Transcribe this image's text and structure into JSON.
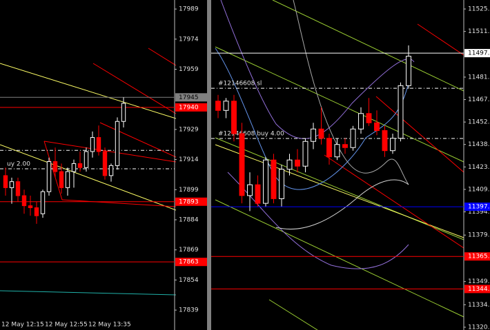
{
  "chart_data": [
    {
      "type": "candlestick",
      "ylim": [
        17835.6,
        17993.5
      ],
      "yticks": [
        17989,
        17974,
        17959,
        17929,
        17914,
        17899,
        17884,
        17869,
        17854,
        17839
      ],
      "categories": [
        "12 May 12:15",
        null,
        null,
        null,
        null,
        null,
        null,
        "12 May 12:55",
        null,
        null,
        null,
        null,
        null,
        null,
        "12 May 13:35",
        null,
        null,
        null,
        null,
        null
      ],
      "candles": [
        [
          17906,
          17910,
          17896,
          17900
        ],
        [
          17900,
          17905,
          17892,
          17903
        ],
        [
          17903,
          17905,
          17893,
          17896
        ],
        [
          17896,
          17899,
          17887,
          17891
        ],
        [
          17891,
          17896,
          17886,
          17890
        ],
        [
          17890,
          17893,
          17882,
          17886
        ],
        [
          17887,
          17899,
          17885,
          17898
        ],
        [
          17898,
          17915,
          17896,
          17913
        ],
        [
          17913,
          17920,
          17905,
          17908
        ],
        [
          17908,
          17912,
          17897,
          17900
        ],
        [
          17900,
          17910,
          17896,
          17908
        ],
        [
          17908,
          17914,
          17900,
          17912
        ],
        [
          17912,
          17918,
          17908,
          17910
        ],
        [
          17910,
          17920,
          17908,
          17918
        ],
        [
          17918,
          17928,
          17915,
          17925
        ],
        [
          17925,
          17931,
          17916,
          17918
        ],
        [
          17918,
          17920,
          17904,
          17906
        ],
        [
          17906,
          17912,
          17903,
          17911
        ],
        [
          17911,
          17935,
          17909,
          17933
        ],
        [
          17933,
          17945,
          17930,
          17942
        ]
      ],
      "up_color": "#ffffff",
      "down_color": "#ff0000",
      "tags": [
        {
          "value": 17945,
          "label": "17945",
          "color": "#808080"
        },
        {
          "value": 17940,
          "label": "17940",
          "color": "#ff0000"
        },
        {
          "value": 17893,
          "label": "17893",
          "color": "#ff0000"
        },
        {
          "value": 17863,
          "label": "17863",
          "color": "#ff0000"
        }
      ],
      "orders": [
        {
          "value": 17918.6
        },
        {
          "value": 17909.4,
          "label": "uy 2.00"
        }
      ]
    },
    {
      "type": "candlestick",
      "ylim": [
        11318.2,
        11531.3
      ],
      "yticks": [
        11525.5,
        {
          "value": 11511,
          "label": "11511.0"
        },
        11481.5,
        {
          "value": 11467,
          "label": "11467.0"
        },
        11452.5,
        {
          "value": 11438,
          "label": "11438.0"
        },
        11423.5,
        {
          "value": 11409,
          "label": "11409.0"
        },
        11394.5,
        11379.5,
        11349.5,
        11334.5,
        {
          "value": 11320,
          "label": "11320.0"
        }
      ],
      "candles": [
        [
          11466,
          11470,
          11455,
          11460
        ],
        [
          11460,
          11468,
          11455,
          11466
        ],
        [
          11466,
          11470,
          11440,
          11445
        ],
        [
          11445,
          11452,
          11400,
          11405
        ],
        [
          11405,
          11420,
          11395,
          11412
        ],
        [
          11412,
          11418,
          11398,
          11400
        ],
        [
          11400,
          11430,
          11398,
          11428
        ],
        [
          11428,
          11432,
          11400,
          11403
        ],
        [
          11403,
          11425,
          11398,
          11422
        ],
        [
          11422,
          11432,
          11418,
          11428
        ],
        [
          11428,
          11435,
          11420,
          11424
        ],
        [
          11424,
          11442,
          11420,
          11440
        ],
        [
          11440,
          11452,
          11435,
          11448
        ],
        [
          11448,
          11462,
          11438,
          11442
        ],
        [
          11442,
          11445,
          11425,
          11430
        ],
        [
          11430,
          11442,
          11428,
          11438
        ],
        [
          11438,
          11442,
          11432,
          11436
        ],
        [
          11436,
          11450,
          11434,
          11448
        ],
        [
          11448,
          11462,
          11445,
          11458
        ],
        [
          11458,
          11468,
          11450,
          11452
        ],
        [
          11452,
          11460,
          11444,
          11447
        ],
        [
          11447,
          11450,
          11430,
          11434
        ],
        [
          11434,
          11445,
          11432,
          11442
        ],
        [
          11442,
          11478,
          11440,
          11476
        ],
        [
          11476,
          11502,
          11474,
          11495
        ]
      ],
      "up_color": "#ffffff",
      "down_color": "#ff0000",
      "tags": [
        {
          "value": 11497,
          "label": "11497.0",
          "color": "#ffffff"
        },
        {
          "value": 11397.8,
          "label": "11397.8",
          "color": "#0000ff"
        },
        {
          "value": 11365.7,
          "label": "11365.7",
          "color": "#ff0000"
        },
        {
          "value": 11344.7,
          "label": "11344.7",
          "color": "#ff0000"
        }
      ],
      "orders": [
        {
          "value": 11474.3,
          "label": "#12146608 sl"
        },
        {
          "value": 11441.9,
          "label": "#12146608 buy 4.00"
        }
      ]
    }
  ]
}
